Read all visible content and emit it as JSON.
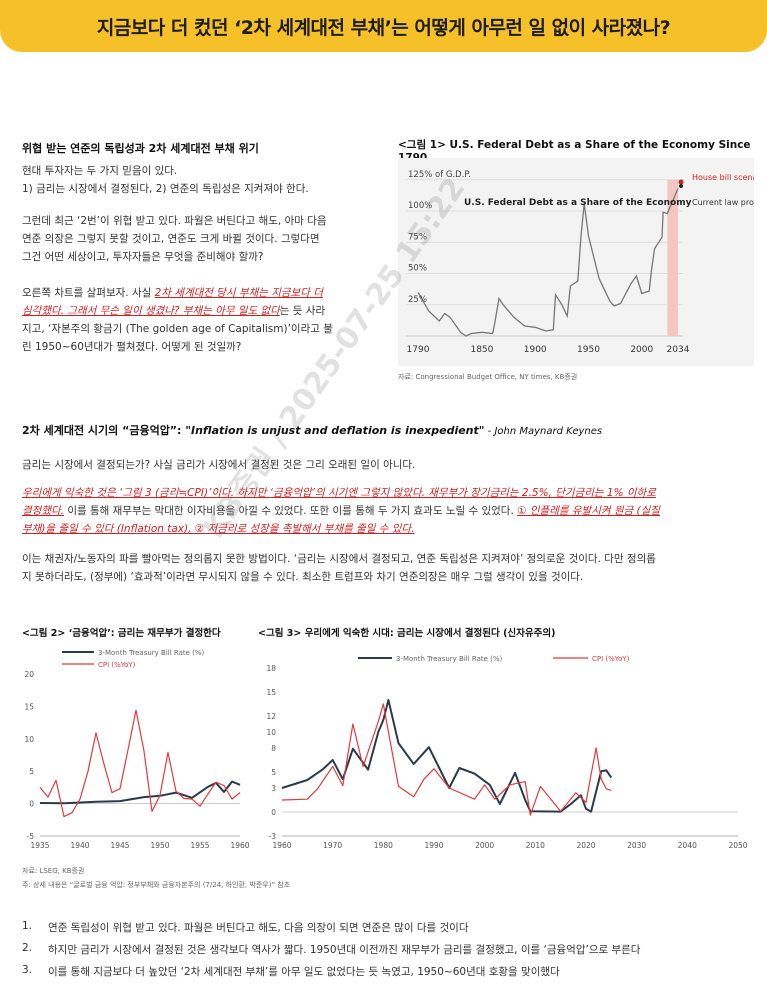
{
  "banner": {
    "title": "지금보다 더 컸던 ‘2차 세계대전 부채’는 어떻게 아무런 일 없이 사라졌나?"
  },
  "section1": {
    "title": "위협 받는 연준의 독립성과 2차 세계대전 부채 위기",
    "p1_l1": "현대 투자자는 두 가지 믿음이 있다.",
    "p1_l2": "1) 금리는 시장에서 결정된다, 2) 연준의 독립성은 지켜져야 한다.",
    "p2_l1": "그런데 최근 ‘2번’이 위협 받고 있다. 파월은 버틴다고 해도, 아마 다음",
    "p2_l2": "연준 의장은 그렇지 못할 것이고, 연준도 크게 바뀔 것이다. 그렇다면",
    "p2_l3": "그건 어떤 세상이고, 투자자들은 무엇을 준비해야 할까?",
    "p3_a": "오른쪽 차트를 살펴보자. 사실 ",
    "p3_red1": "2차 세계대전 당시 부채는 지금보다 더",
    "p3_red2": "심각했다. 그래서 무슨 일이 생겼나? 부채는 아무 일도 없다",
    "p3_b": "는 듯 사라",
    "p3_l3": "지고, ‘자본주의 황금기 (The golden age of Capitalism)’이라고 불",
    "p3_l4": "린 1950~60년대가 펼쳐졌다. 어떻게 된 것일까?"
  },
  "figure1": {
    "title": "<그림 1> U.S. Federal Debt as a Share of the Economy Since 1790",
    "source": "자료: Congressional Budget Office, NY times, KB증권"
  },
  "section2": {
    "title": "2차 세계대전 시기의 “금융억압”: ",
    "quote": "\"Inflation is unjust and deflation is inexpedient\"",
    "author": " - John Maynard Keynes",
    "p1": "금리는 시장에서 결정되는가? 사실 금리가 시장에서 결정된 것은 그리 오래된 일이 아니다.",
    "p2_red1": "우리에게 익숙한 것은 ‘그림 3 (금리≒CPI)’이다. 하지만 ‘금융억압’의 시기엔 그렇지 않았다. 재무부가 장기금리는 2.5%, 단기금리는 1% 이하로",
    "p2_red2": "결정했다.",
    "p2_b": " 이를 통해 재무부는 막대한 이자비용을 아낄 수 있었다. 또한 이를 통해 두 가지 효과도 노릴 수 있었다. ",
    "p2_red3": "① 인플레를 유발시켜 원금 (실질",
    "p2_red4": "부채)을 줄일 수 있다 (Inflation tax), ② 저금리로 성장을 촉발해서 부채를 줄일 수 있다.",
    "p3_l1": "이는 채권자/노동자의 파를 빨아먹는 정의롭지 못한 방법이다. ‘금리는 시장에서 결정되고, 연준 독립성은 지켜져야’ 정의로운 것이다. 다만 정의롭",
    "p3_l2": "지 못하더라도, (정부에) ‘효과적’이라면 무시되지 않을 수 있다. 최소한 트럼프와 차기 연준의장은 매우 그럴 생각이 있을 것이다."
  },
  "figure2": {
    "title": "<그림 2> ‘금융억압’: 금리는 재무부가 결정한다"
  },
  "figure3": {
    "title": "<그림 3> 우리에게 익숙한 시대: 금리는 시장에서 결정된다 (신자유주의)"
  },
  "bottom_source": {
    "l1": "자료: LSEG, KB증권",
    "l2": "주: 상세 내용은 “글로벌 금융 억압: 정부부채와 금융자본주의 (7/24, 하인환, 박준우)” 참조"
  },
  "list": [
    {
      "num": "1.",
      "text": "연준 독립성이 위협 받고 있다. 파월은 버틴다고 해도, 다음 의장이 되면 연준은 많이 다를 것이다"
    },
    {
      "num": "2.",
      "text": "하지만 금리가 시장에서 결정된 것은 생각보다 역사가 짧다. 1950년대 이전까진 재무부가 금리를 결정했고, 이를 ‘금융억압’으로 부른다"
    },
    {
      "num": "3.",
      "text": "이를 통해 지금보다 더 높았던 ‘2차 세계대전 부채’를 아무 일도 없었다는 듯 녹였고, 1950~60년대 호황을 맞이했다"
    }
  ],
  "watermark": "KB증권 / 2025-07-25 15:22",
  "colors": {
    "banner": "#f6c028",
    "tbill": "#2b3a4a",
    "cpi": "#e23b3b",
    "debt_line": "#777777",
    "highlight": "#d31f1f"
  },
  "chart_data": [
    {
      "type": "line",
      "title": "U.S. Federal Debt as a Share of the Economy",
      "ylabel": "",
      "x_ticks": [
        "1790",
        "1850",
        "1900",
        "1950",
        "2000",
        "2034"
      ],
      "y_ticks": [
        "25%",
        "50%",
        "75%",
        "100%",
        "125% of G.D.P."
      ],
      "ylim": [
        0,
        130
      ],
      "annotations": [
        "House bill scenarios",
        "Current law projection"
      ],
      "series": [
        {
          "values_x": [
            1790,
            1800,
            1810,
            1815,
            1820,
            1830,
            1835,
            1840,
            1850,
            1860,
            1862,
            1866,
            1870,
            1880,
            1890,
            1900,
            1910,
            1917,
            1919,
            1925,
            1930,
            1933,
            1940,
            1943,
            1946,
            1950,
            1960,
            1970,
            1974,
            1980,
            1990,
            1995,
            2000,
            2007,
            2009,
            2012,
            2019,
            2020,
            2024,
            2034
          ],
          "values_y": [
            35,
            20,
            12,
            18,
            15,
            3,
            0,
            2,
            3,
            2,
            10,
            30,
            25,
            15,
            8,
            7,
            4,
            5,
            33,
            25,
            16,
            40,
            44,
            80,
            106,
            80,
            46,
            28,
            24,
            26,
            42,
            48,
            34,
            36,
            52,
            70,
            79,
            99,
            98,
            118
          ]
        }
      ]
    },
    {
      "type": "line",
      "xlim": [
        1935,
        1960
      ],
      "ylim": [
        -5,
        20
      ],
      "x_ticks": [
        "1935",
        "1940",
        "1945",
        "1950",
        "1955",
        "1960"
      ],
      "y_ticks": [
        "-5",
        "0",
        "5",
        "10",
        "15",
        "20"
      ],
      "series": [
        {
          "name": "3-Month Treasury Bill Rate (%)",
          "x": [
            1935,
            1938,
            1942,
            1945,
            1948,
            1950,
            1952,
            1954,
            1956,
            1957,
            1958,
            1959,
            1960
          ],
          "y": [
            0.1,
            0.05,
            0.3,
            0.38,
            1.0,
            1.2,
            1.7,
            0.9,
            2.6,
            3.2,
            1.8,
            3.4,
            2.9
          ]
        },
        {
          "name": "CPI (%YoY)",
          "x": [
            1935,
            1936,
            1937,
            1938,
            1939,
            1940,
            1941,
            1942,
            1943,
            1944,
            1945,
            1946,
            1947,
            1948,
            1949,
            1950,
            1951,
            1952,
            1953,
            1954,
            1955,
            1956,
            1957,
            1958,
            1959,
            1960
          ],
          "y": [
            2.5,
            1.0,
            3.6,
            -2.0,
            -1.4,
            0.7,
            5.0,
            10.9,
            6.1,
            1.7,
            2.3,
            8.3,
            14.4,
            8.1,
            -1.2,
            1.3,
            7.9,
            1.9,
            0.8,
            0.7,
            -0.4,
            1.5,
            3.3,
            2.8,
            0.7,
            1.7
          ]
        }
      ]
    },
    {
      "type": "line",
      "xlim": [
        1960,
        2050
      ],
      "ylim": [
        -3,
        18
      ],
      "x_ticks": [
        "1960",
        "1970",
        "1980",
        "1990",
        "2000",
        "2010",
        "2020",
        "2030",
        "2040",
        "2050"
      ],
      "y_ticks": [
        "-3",
        "0",
        "3",
        "5",
        "8",
        "10",
        "12",
        "15",
        "18"
      ],
      "series": [
        {
          "name": "3-Month Treasury Bill Rate (%)",
          "x": [
            1960,
            1965,
            1968,
            1970,
            1972,
            1974,
            1977,
            1979,
            1980,
            1981,
            1983,
            1986,
            1989,
            1993,
            1995,
            1998,
            2001,
            2003,
            2006,
            2008,
            2009,
            2015,
            2017,
            2019,
            2020,
            2021,
            2023,
            2024,
            2025
          ],
          "y": [
            3.0,
            4.0,
            5.3,
            6.5,
            4.1,
            7.9,
            5.3,
            10.0,
            11.5,
            14.0,
            8.6,
            6.0,
            8.1,
            3.0,
            5.5,
            4.8,
            3.4,
            1.0,
            4.9,
            1.5,
            0.1,
            0.05,
            1.0,
            2.1,
            0.4,
            0.05,
            5.1,
            5.2,
            4.3
          ]
        },
        {
          "name": "CPI (%YoY)",
          "x": [
            1960,
            1965,
            1967,
            1970,
            1972,
            1974,
            1976,
            1979,
            1980,
            1983,
            1986,
            1988,
            1990,
            1993,
            1998,
            2000,
            2002,
            2005,
            2008,
            2009,
            2011,
            2015,
            2018,
            2020,
            2021,
            2022,
            2023,
            2024,
            2025
          ],
          "y": [
            1.5,
            1.6,
            2.9,
            5.7,
            3.3,
            11.0,
            5.7,
            11.3,
            13.5,
            3.2,
            1.9,
            4.1,
            5.4,
            3.0,
            1.6,
            3.4,
            1.6,
            3.4,
            3.8,
            -0.4,
            3.2,
            0.1,
            2.4,
            1.2,
            4.7,
            8.0,
            4.1,
            2.9,
            2.7
          ]
        }
      ]
    }
  ]
}
